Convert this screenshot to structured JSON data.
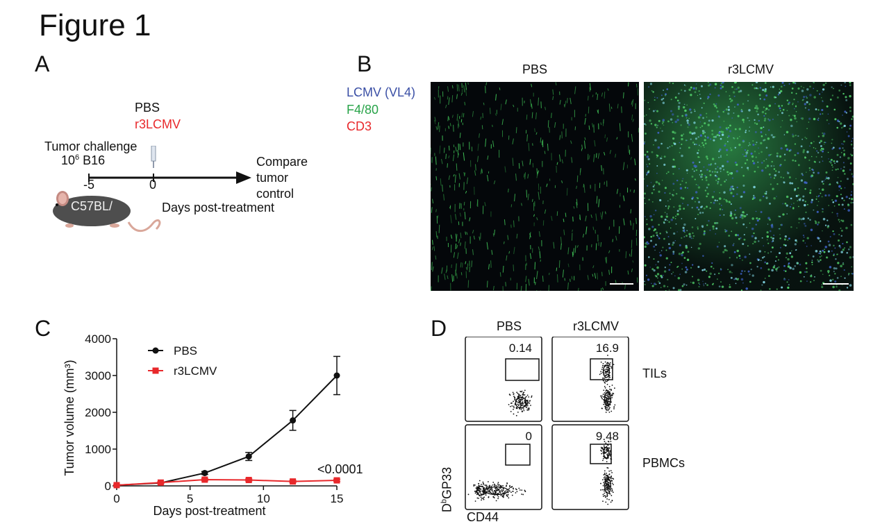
{
  "figure_title": "Figure 1",
  "panel_a": {
    "label": "A",
    "treatment_1": "PBS",
    "treatment_2": "r3LCMV",
    "challenge_line1": "Tumor challenge",
    "challenge_line2_pre": "10",
    "challenge_line2_sup": "6",
    "challenge_line2_post": " B16",
    "tick_1": "-5",
    "tick_2": "0",
    "endpoint_line1": "Compare",
    "endpoint_line2": "tumor",
    "endpoint_line3": "control",
    "axis_label": "Days post-treatment",
    "mouse_label": "C57BL/"
  },
  "panel_b": {
    "label": "B",
    "legend_1": "LCMV (VL4)",
    "legend_2": "F4/80",
    "legend_3": "CD3",
    "col_1": "PBS",
    "col_2": "r3LCMV"
  },
  "panel_c": {
    "label": "C",
    "pvalue": "<0.0001"
  },
  "chart_data": {
    "type": "line",
    "xlabel": "Days post-treatment",
    "ylabel": "Tumor volume (mm³)",
    "xlim": [
      0,
      15
    ],
    "ylim": [
      0,
      4000
    ],
    "xticks": [
      0,
      5,
      10,
      15
    ],
    "yticks": [
      0,
      1000,
      2000,
      3000,
      4000
    ],
    "legend_position": "top-left",
    "series": [
      {
        "name": "PBS",
        "color": "#111111",
        "marker": "circle",
        "x": [
          0,
          3,
          6,
          9,
          12,
          15
        ],
        "y": [
          20,
          80,
          350,
          800,
          1780,
          3000
        ],
        "err": [
          10,
          20,
          40,
          110,
          270,
          520
        ]
      },
      {
        "name": "r3LCMV",
        "color": "#e8282b",
        "marker": "square",
        "x": [
          0,
          3,
          6,
          9,
          12,
          15
        ],
        "y": [
          20,
          90,
          170,
          160,
          120,
          150
        ],
        "err": [
          10,
          20,
          30,
          30,
          30,
          30
        ]
      }
    ]
  },
  "panel_d": {
    "label": "D",
    "col_1": "PBS",
    "col_2": "r3LCMV",
    "row_1": "TILs",
    "row_2": "PBMCs",
    "ylabel_pre": "D",
    "ylabel_sup": "b",
    "ylabel_post": "GP33",
    "xlabel": "CD44",
    "gates": [
      "0.14",
      "16.9",
      "0",
      "9.48"
    ]
  }
}
